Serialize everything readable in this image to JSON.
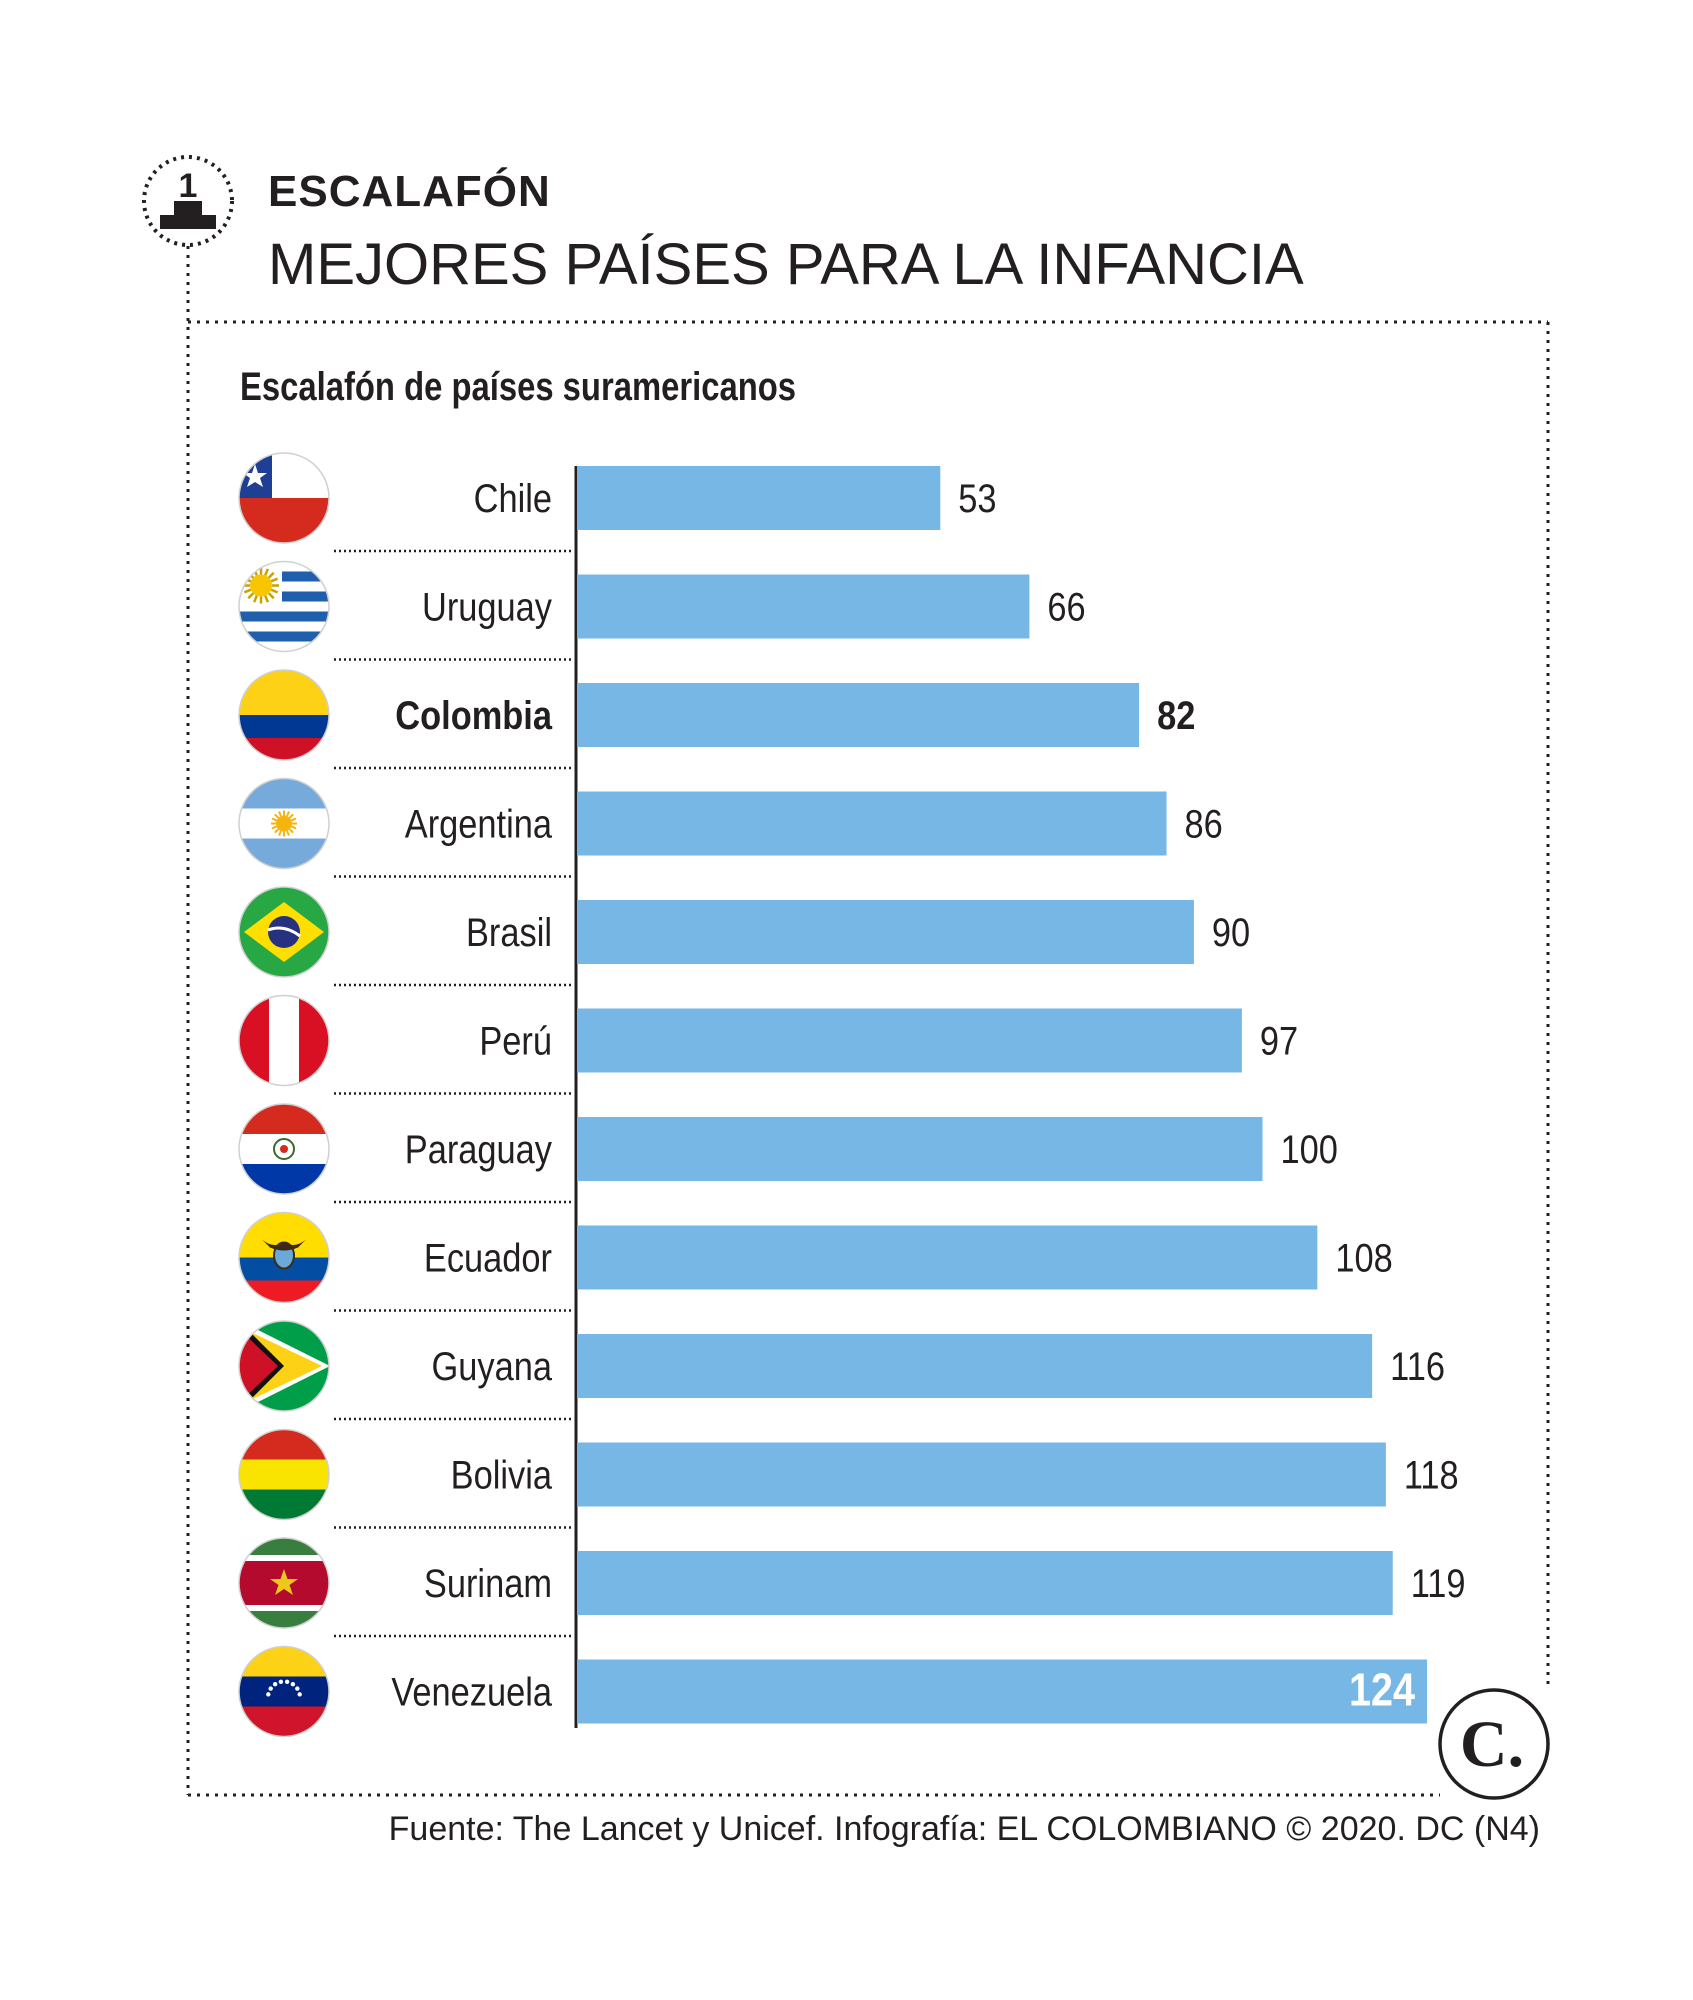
{
  "header": {
    "kicker": "ESCALAFÓN",
    "title": "MEJORES PAÍSES PARA LA INFANCIA",
    "badge_number": "1"
  },
  "source": "Fuente: The Lancet y Unicef. Infografía: EL COLOMBIANO © 2020. DC (N4)",
  "logo_letter": "C.",
  "colors": {
    "bar": "#77b7e5",
    "text": "#231f20",
    "highlight_value_text": "#ffffff"
  },
  "chart_data": {
    "type": "bar",
    "orientation": "horizontal",
    "subtitle": "Escalafón de países suramericanos",
    "xlim": [
      0,
      124
    ],
    "grid": false,
    "highlight_category": "Colombia",
    "categories": [
      "Chile",
      "Uruguay",
      "Colombia",
      "Argentina",
      "Brasil",
      "Perú",
      "Paraguay",
      "Ecuador",
      "Guyana",
      "Bolivia",
      "Surinam",
      "Venezuela"
    ],
    "values": [
      53,
      66,
      82,
      86,
      90,
      97,
      100,
      108,
      116,
      118,
      119,
      124
    ],
    "flags": [
      "chile-flag-icon",
      "uruguay-flag-icon",
      "colombia-flag-icon",
      "argentina-flag-icon",
      "brazil-flag-icon",
      "peru-flag-icon",
      "paraguay-flag-icon",
      "ecuador-flag-icon",
      "guyana-flag-icon",
      "bolivia-flag-icon",
      "suriname-flag-icon",
      "venezuela-flag-icon"
    ]
  }
}
